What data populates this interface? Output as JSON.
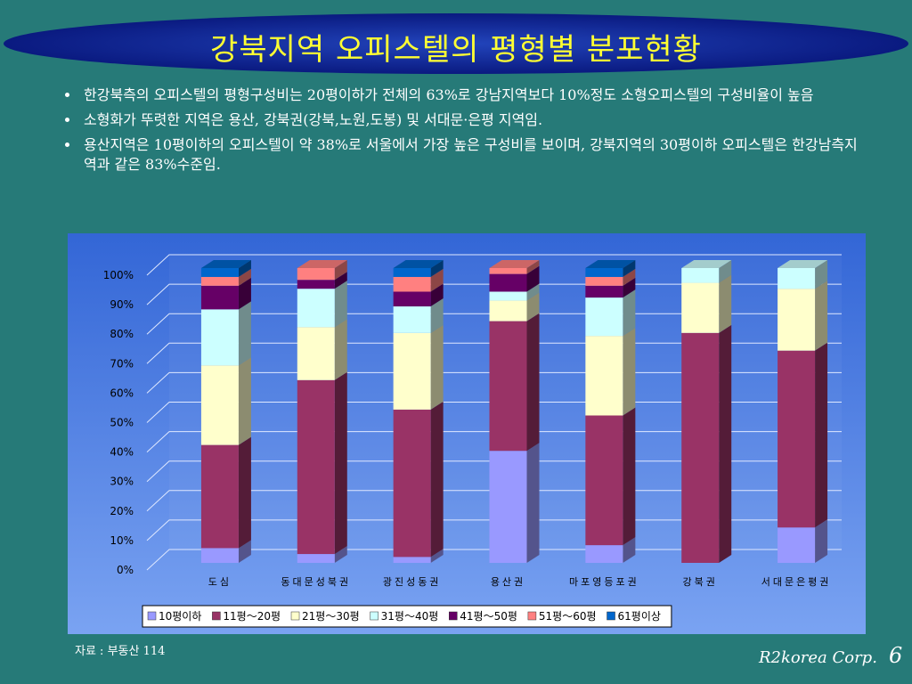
{
  "title": "강북지역 오피스텔의 평형별 분포현황",
  "bullets": [
    "한강북측의 오피스텔의 평형구성비는 20평이하가 전체의 63%로 강남지역보다 10%정도 소형오피스텔의 구성비율이 높음",
    "소형화가 뚜렷한 지역은 용산, 강북권(강북,노원,도봉) 및 서대문·은평 지역임.",
    "용산지역은 10평이하의 오피스텔이 약 38%로 서울에서 가장 높은 구성비를 보이며, 강북지역의 30평이하 오피스텔은 한강남측지역과 같은 83%수준임."
  ],
  "source": "자료 : 부동산 114",
  "footer": {
    "company": "R2korea Corp.",
    "page": "6"
  },
  "chart_data": {
    "type": "stacked-bar-3d",
    "categories": [
      "도심",
      "동대문성북권",
      "광진성동권",
      "용산권",
      "마포영등포권",
      "강북권",
      "서대문은평권"
    ],
    "series": [
      {
        "name": "10평이하",
        "color": "#9999ff",
        "values": [
          5,
          3,
          2,
          38,
          6,
          0,
          12
        ]
      },
      {
        "name": "11평～20평",
        "color": "#993366",
        "values": [
          35,
          59,
          50,
          44,
          44,
          78,
          60
        ]
      },
      {
        "name": "21평～30평",
        "color": "#ffffcc",
        "values": [
          27,
          18,
          26,
          7,
          27,
          17,
          21
        ]
      },
      {
        "name": "31평～40평",
        "color": "#ccffff",
        "values": [
          19,
          13,
          9,
          3,
          13,
          5,
          7
        ]
      },
      {
        "name": "41평～50평",
        "color": "#660066",
        "values": [
          8,
          3,
          5,
          6,
          4,
          0,
          0
        ]
      },
      {
        "name": "51평～60평",
        "color": "#ff8080",
        "values": [
          3,
          4,
          5,
          2,
          3,
          0,
          0
        ]
      },
      {
        "name": "61평이상",
        "color": "#0066cc",
        "values": [
          3,
          0,
          3,
          0,
          3,
          0,
          0
        ]
      }
    ],
    "ylim": [
      0,
      100
    ],
    "yticks": [
      {
        "value": 0,
        "label": "0%"
      },
      {
        "value": 10,
        "label": "10%"
      },
      {
        "value": 20,
        "label": "20%"
      },
      {
        "value": 30,
        "label": "30%"
      },
      {
        "value": 40,
        "label": "40%"
      },
      {
        "value": 50,
        "label": "50%"
      },
      {
        "value": 60,
        "label": "60%"
      },
      {
        "value": 70,
        "label": "70%"
      },
      {
        "value": 80,
        "label": "80%"
      },
      {
        "value": 90,
        "label": "90%"
      },
      {
        "value": 100,
        "label": "100%"
      }
    ],
    "grid": true,
    "legend": "bottom"
  }
}
